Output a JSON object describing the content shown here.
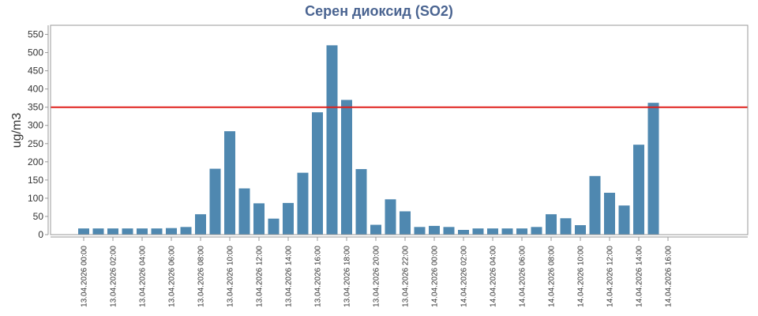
{
  "chart_data": {
    "type": "bar",
    "title": "Серен диоксид (SO2)",
    "ylabel": "ug/m3",
    "xlabel": "",
    "ylim": [
      0,
      575
    ],
    "yticks": [
      0,
      50,
      100,
      150,
      200,
      250,
      300,
      350,
      400,
      450,
      500,
      550
    ],
    "grid": false,
    "threshold": {
      "value": 350,
      "color": "#e0201c"
    },
    "bar_color": "#4f88b0",
    "categories": [
      "13.04.2026 00:00",
      "13.04.2026 01:00",
      "13.04.2026 02:00",
      "13.04.2026 03:00",
      "13.04.2026 04:00",
      "13.04.2026 05:00",
      "13.04.2026 06:00",
      "13.04.2026 07:00",
      "13.04.2026 08:00",
      "13.04.2026 09:00",
      "13.04.2026 10:00",
      "13.04.2026 11:00",
      "13.04.2026 12:00",
      "13.04.2026 13:00",
      "13.04.2026 14:00",
      "13.04.2026 15:00",
      "13.04.2026 16:00",
      "13.04.2026 17:00",
      "13.04.2026 18:00",
      "13.04.2026 19:00",
      "13.04.2026 20:00",
      "13.04.2026 21:00",
      "13.04.2026 22:00",
      "13.04.2026 23:00",
      "14.04.2026 00:00",
      "14.04.2026 01:00",
      "14.04.2026 02:00",
      "14.04.2026 03:00",
      "14.04.2026 04:00",
      "14.04.2026 05:00",
      "14.04.2026 06:00",
      "14.04.2026 07:00",
      "14.04.2026 08:00",
      "14.04.2026 09:00",
      "14.04.2026 10:00",
      "14.04.2026 11:00",
      "14.04.2026 12:00",
      "14.04.2026 13:00",
      "14.04.2026 14:00",
      "14.04.2026 15:00",
      "14.04.2026 16:00"
    ],
    "values": [
      17,
      17,
      17,
      17,
      17,
      17,
      18,
      21,
      56,
      181,
      284,
      127,
      86,
      44,
      87,
      170,
      336,
      520,
      370,
      180,
      27,
      97,
      64,
      21,
      24,
      21,
      13,
      17,
      17,
      17,
      17,
      21,
      56,
      45,
      26,
      161,
      115,
      80,
      247,
      362,
      null
    ],
    "tick_labels": [
      "13.04.2026 00:00",
      "13.04.2026 02:00",
      "13.04.2026 04:00",
      "13.04.2026 06:00",
      "13.04.2026 08:00",
      "13.04.2026 10:00",
      "13.04.2026 12:00",
      "13.04.2026 14:00",
      "13.04.2026 16:00",
      "13.04.2026 18:00",
      "13.04.2026 20:00",
      "13.04.2026 22:00",
      "14.04.2026 00:00",
      "14.04.2026 02:00",
      "14.04.2026 04:00",
      "14.04.2026 06:00",
      "14.04.2026 08:00",
      "14.04.2026 10:00",
      "14.04.2026 12:00",
      "14.04.2026 14:00",
      "14.04.2026 16:00"
    ]
  }
}
